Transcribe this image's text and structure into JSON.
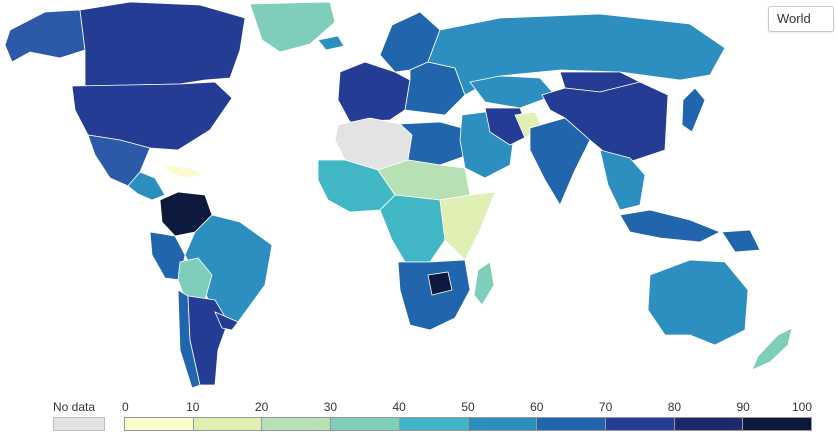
{
  "region_selector": {
    "selected": "World"
  },
  "legend": {
    "no_data_label": "No data",
    "no_data_color": "#e3e3e3",
    "ticks": [
      "0",
      "10",
      "20",
      "30",
      "40",
      "50",
      "60",
      "70",
      "80",
      "90",
      "100"
    ],
    "colors": [
      "#fbfcce",
      "#e0efb4",
      "#b8e0b5",
      "#7fcdbb",
      "#41b6c4",
      "#2c8fc0",
      "#2166ac",
      "#253c94",
      "#1c2a6b",
      "#0e1a3d"
    ]
  },
  "map": {
    "land_colors": {
      "north_america": "#253c94",
      "canada": "#253c94",
      "usa": "#253c94",
      "greenland": "#7fcdbb",
      "alaska": "#2c5aa8",
      "mexico": "#2c5aa8",
      "central_america": "#2c8fc0",
      "caribbean": "#fbfcce",
      "colombia_venezuela": "#0e1a3d",
      "brazil": "#2c8fc0",
      "peru": "#2166ac",
      "bolivia": "#7fcdbb",
      "argentina": "#253c94",
      "chile": "#2166ac",
      "uruguay": "#253c94",
      "western_europe": "#253c94",
      "scandinavia": "#2166ac",
      "eastern_europe": "#2166ac",
      "russia": "#2c8fc0",
      "north_africa_sahara": "#e3e3e3",
      "libya_egypt": "#2166ac",
      "west_africa": "#41b6c4",
      "sahel": "#b8e0b5",
      "central_africa": "#41b6c4",
      "east_africa": "#e0efb4",
      "southern_africa": "#2166ac",
      "zimbabwe": "#0e1a3d",
      "madagascar": "#7fcdbb",
      "middle_east": "#2c8fc0",
      "iran": "#253c94",
      "afghanistan": "#e0efb4",
      "kazakhstan": "#2c8fc0",
      "india": "#2166ac",
      "china": "#253c94",
      "mongolia": "#253c94",
      "southeast_asia": "#2c8fc0",
      "indonesia": "#2166ac",
      "japan": "#2166ac",
      "australia": "#2c8fc0",
      "new_zealand": "#7fcdbb",
      "png": "#2166ac",
      "iceland": "#2c8fc0"
    }
  }
}
